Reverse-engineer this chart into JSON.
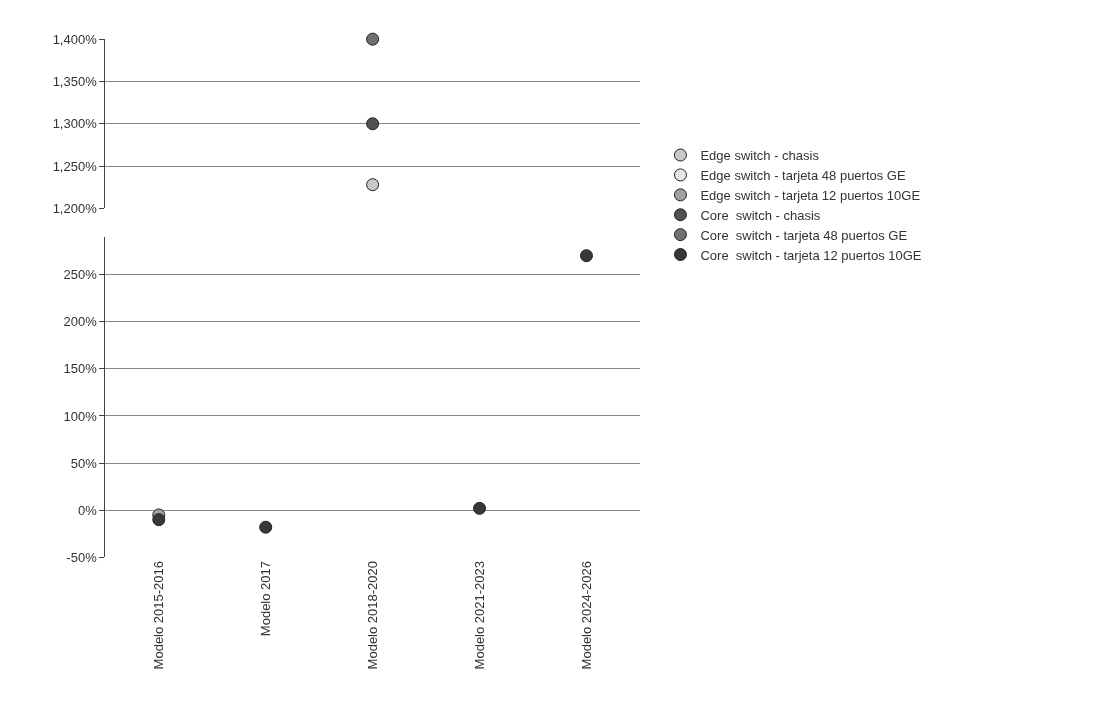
{
  "chart_data": [
    {
      "type": "scatter",
      "categories": [
        "Modelo 2015-2016",
        "Modelo 2017",
        "Modelo 2018-2020",
        "Modelo 2021-2023",
        "Modelo 2024-2026"
      ],
      "ylim": [
        1200,
        1400
      ],
      "yticks": [
        {
          "value": 1200,
          "label": "1,200%"
        },
        {
          "value": 1250,
          "label": "1,250%"
        },
        {
          "value": 1300,
          "label": "1,300%"
        },
        {
          "value": 1350,
          "label": "1,350%"
        },
        {
          "value": 1400,
          "label": "1,400%"
        }
      ],
      "grid": "y",
      "legend": false,
      "marker": "circle",
      "tick_labels": "y",
      "series": [
        {
          "color": "#c8c8c8",
          "values": [
            null,
            null,
            1228,
            null,
            null
          ]
        },
        {
          "color": "#505050",
          "values": [
            null,
            null,
            1300,
            null,
            null
          ]
        },
        {
          "color": "#707070",
          "values": [
            null,
            null,
            1400,
            null,
            null
          ]
        }
      ]
    },
    {
      "type": "scatter",
      "categories": [
        "Modelo 2015-2016",
        "Modelo 2017",
        "Modelo 2018-2020",
        "Modelo 2021-2023",
        "Modelo 2024-2026"
      ],
      "ylim": [
        -50,
        290
      ],
      "yticks": [
        {
          "value": -50,
          "label": "-50%"
        },
        {
          "value": 0,
          "label": "0%"
        },
        {
          "value": 50,
          "label": "50%"
        },
        {
          "value": 100,
          "label": "100%"
        },
        {
          "value": 150,
          "label": "150%"
        },
        {
          "value": 200,
          "label": "200%"
        },
        {
          "value": 250,
          "label": "250%"
        }
      ],
      "grid": "y",
      "legend": "right",
      "marker": "circle",
      "series": [
        {
          "name": "Edge switch - chasis",
          "color": "#c8c8c8",
          "values": [
            null,
            null,
            null,
            null,
            null
          ]
        },
        {
          "name": "Edge switch - tarjeta 48 puertos GE",
          "color": "#e6e6e6",
          "values": [
            null,
            null,
            null,
            null,
            null
          ]
        },
        {
          "name": "Edge switch - tarjeta 12 puertos 10GE",
          "color": "#a0a0a0",
          "values": [
            -5,
            null,
            null,
            null,
            null
          ]
        },
        {
          "name": "Core  switch - chasis",
          "color": "#505050",
          "values": [
            null,
            null,
            null,
            null,
            null
          ]
        },
        {
          "name": "Core  switch - tarjeta 48 puertos GE",
          "color": "#707070",
          "values": [
            null,
            null,
            null,
            null,
            null
          ]
        },
        {
          "name": "Core  switch - tarjeta 12 puertos 10GE",
          "color": "#383838",
          "values": [
            -10,
            -18,
            null,
            2,
            270
          ]
        }
      ]
    }
  ]
}
